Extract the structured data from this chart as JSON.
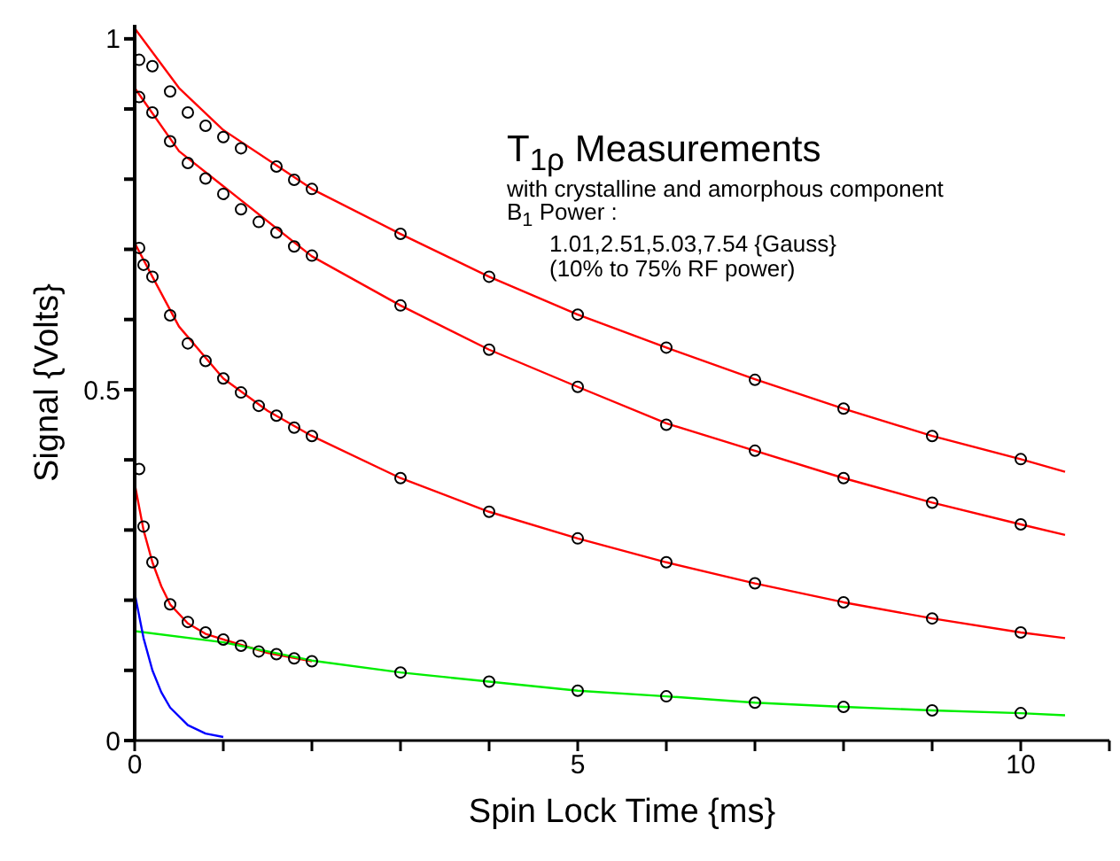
{
  "chart_data": {
    "type": "scatter",
    "title": "$_{}$T$_{1ρ}$ Measurements",
    "xlabel": "Spin Lock Time {ms}",
    "ylabel": "Signal {Volts}",
    "annotations": [
      "with crystalline and amorphous component",
      "B$_{1}$ Power  :",
      "1.01,2.51,5.03,7.54 {Gauss}",
      "(10% to 75% RF power)"
    ],
    "xlim": [
      0,
      11
    ],
    "ylim": [
      0,
      1.02
    ],
    "xticks": [
      0,
      {
        "value": 1,
        "label": null
      },
      {
        "value": 2,
        "label": null
      },
      {
        "value": 3,
        "label": null
      },
      {
        "value": 4,
        "label": null
      },
      5,
      {
        "value": 6,
        "label": null
      },
      {
        "value": 7,
        "label": null
      },
      {
        "value": 8,
        "label": null
      },
      {
        "value": 9,
        "label": null
      },
      10,
      {
        "value": 11,
        "label": null
      }
    ],
    "yticks": [
      0,
      {
        "value": 0.1,
        "label": null
      },
      {
        "value": 0.2,
        "label": null
      },
      {
        "value": 0.3,
        "label": null
      },
      {
        "value": 0.4,
        "label": null
      },
      0.5,
      {
        "value": 0.6,
        "label": null
      },
      {
        "value": 0.7,
        "label": null
      },
      {
        "value": 0.8,
        "label": null
      },
      {
        "value": 0.9,
        "label": null
      },
      1
    ],
    "grid": false,
    "legend": false,
    "marker": "circle",
    "series": [
      {
        "color": "#000000",
        "x": [
          0.05,
          0.2,
          0.4,
          0.6,
          0.8,
          1.0,
          1.2,
          1.6,
          1.8,
          2.0,
          3,
          4,
          5,
          6,
          7,
          8,
          9,
          10
        ],
        "values": [
          0.97,
          0.961,
          0.925,
          0.895,
          0.876,
          0.86,
          0.844,
          0.818,
          0.799,
          0.786,
          0.722,
          0.661,
          0.607,
          0.56,
          0.514,
          0.473,
          0.434,
          0.401
        ]
      },
      {
        "color": "#000000",
        "x": [
          0.05,
          0.2,
          0.4,
          0.6,
          0.8,
          1.0,
          1.2,
          1.4,
          1.6,
          1.8,
          2.0,
          3,
          4,
          5,
          6,
          7,
          8,
          9,
          10
        ],
        "values": [
          0.917,
          0.895,
          0.854,
          0.823,
          0.801,
          0.779,
          0.757,
          0.739,
          0.724,
          0.704,
          0.691,
          0.62,
          0.557,
          0.504,
          0.45,
          0.413,
          0.374,
          0.339,
          0.308
        ]
      },
      {
        "color": "#000000",
        "x": [
          0.05,
          0.1,
          0.2,
          0.4,
          0.6,
          0.8,
          1.0,
          1.2,
          1.4,
          1.6,
          1.8,
          2.0,
          3,
          4,
          5,
          6,
          7,
          8,
          9,
          10
        ],
        "values": [
          0.702,
          0.678,
          0.661,
          0.606,
          0.566,
          0.541,
          0.516,
          0.496,
          0.477,
          0.463,
          0.446,
          0.434,
          0.374,
          0.326,
          0.288,
          0.254,
          0.224,
          0.197,
          0.174,
          0.154
        ]
      },
      {
        "color": "#000000",
        "x": [
          0.05,
          0.1,
          0.2,
          0.4,
          0.6,
          0.8,
          1.0,
          1.2,
          1.4,
          1.6,
          1.8,
          2.0,
          3,
          4,
          5,
          6,
          7,
          8,
          9,
          10
        ],
        "values": [
          0.387,
          0.305,
          0.254,
          0.194,
          0.169,
          0.154,
          0.144,
          0.135,
          0.127,
          0.123,
          0.117,
          0.113,
          0.097,
          0.084,
          0.071,
          0.063,
          0.054,
          0.048,
          0.043,
          0.039
        ]
      },
      {
        "type": "line",
        "color": "#ff0000",
        "marker": "none",
        "x": [
          0,
          0.5,
          1,
          2,
          3,
          4,
          5,
          6,
          7,
          8,
          9,
          10,
          10.5
        ],
        "values": [
          1.015,
          0.93,
          0.87,
          0.786,
          0.722,
          0.661,
          0.607,
          0.56,
          0.515,
          0.473,
          0.434,
          0.401,
          0.383
        ]
      },
      {
        "type": "line",
        "color": "#ff0000",
        "marker": "none",
        "x": [
          0,
          0.5,
          1,
          2,
          3,
          4,
          5,
          6,
          7,
          8,
          9,
          10,
          10.5
        ],
        "values": [
          0.93,
          0.84,
          0.79,
          0.69,
          0.62,
          0.557,
          0.504,
          0.452,
          0.413,
          0.374,
          0.339,
          0.308,
          0.293
        ]
      },
      {
        "type": "line",
        "color": "#ff0000",
        "marker": "none",
        "x": [
          0,
          0.2,
          0.5,
          1,
          1.5,
          2,
          3,
          4,
          5,
          6,
          7,
          8,
          9,
          10,
          10.5
        ],
        "values": [
          0.709,
          0.661,
          0.59,
          0.516,
          0.47,
          0.434,
          0.374,
          0.326,
          0.288,
          0.254,
          0.224,
          0.197,
          0.174,
          0.154,
          0.146
        ]
      },
      {
        "type": "line",
        "color": "#ff0000",
        "marker": "none",
        "x": [
          0,
          0.1,
          0.2,
          0.3,
          0.4,
          0.6,
          0.8,
          1.0,
          1.5,
          2
        ],
        "values": [
          0.366,
          0.3,
          0.254,
          0.22,
          0.194,
          0.167,
          0.152,
          0.144,
          0.125,
          0.113
        ]
      },
      {
        "type": "line",
        "color": "#00ee00",
        "marker": "none",
        "x": [
          0,
          1,
          2,
          3,
          4,
          5,
          6,
          7,
          8,
          9,
          10,
          10.5
        ],
        "values": [
          0.156,
          0.14,
          0.114,
          0.097,
          0.084,
          0.071,
          0.063,
          0.054,
          0.048,
          0.043,
          0.039,
          0.036
        ]
      },
      {
        "type": "line",
        "color": "#0000ff",
        "marker": "none",
        "x": [
          0,
          0.1,
          0.2,
          0.3,
          0.4,
          0.6,
          0.8,
          1.0
        ],
        "values": [
          0.21,
          0.146,
          0.1,
          0.069,
          0.047,
          0.022,
          0.01,
          0.005
        ]
      }
    ]
  }
}
